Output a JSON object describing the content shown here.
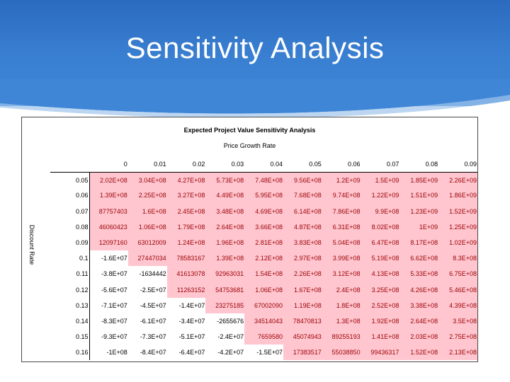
{
  "slide": {
    "title": "Sensitivity Analysis"
  },
  "sheet": {
    "title": "Expected Project Value Sensitivity Analysis",
    "column_axis_label": "Price Growth Rate",
    "row_axis_label": "Discount Rate",
    "columns": [
      "0",
      "0.01",
      "0.02",
      "0.03",
      "0.04",
      "0.05",
      "0.06",
      "0.07",
      "0.08",
      "0.09"
    ],
    "rows": [
      {
        "label": "0.05",
        "cells": [
          {
            "v": "2.02E+08",
            "pos": true
          },
          {
            "v": "3.04E+08",
            "pos": true
          },
          {
            "v": "4.27E+08",
            "pos": true
          },
          {
            "v": "5.73E+08",
            "pos": true
          },
          {
            "v": "7.48E+08",
            "pos": true
          },
          {
            "v": "9.56E+08",
            "pos": true
          },
          {
            "v": "1.2E+09",
            "pos": true
          },
          {
            "v": "1.5E+09",
            "pos": true
          },
          {
            "v": "1.85E+09",
            "pos": true
          },
          {
            "v": "2.26E+09",
            "pos": true
          }
        ]
      },
      {
        "label": "0.06",
        "cells": [
          {
            "v": "1.39E+08",
            "pos": true
          },
          {
            "v": "2.25E+08",
            "pos": true
          },
          {
            "v": "3.27E+08",
            "pos": true
          },
          {
            "v": "4.49E+08",
            "pos": true
          },
          {
            "v": "5.95E+08",
            "pos": true
          },
          {
            "v": "7.68E+08",
            "pos": true
          },
          {
            "v": "9.74E+08",
            "pos": true
          },
          {
            "v": "1.22E+09",
            "pos": true
          },
          {
            "v": "1.51E+09",
            "pos": true
          },
          {
            "v": "1.86E+09",
            "pos": true
          }
        ]
      },
      {
        "label": "0.07",
        "cells": [
          {
            "v": "87757403",
            "pos": true
          },
          {
            "v": "1.6E+08",
            "pos": true
          },
          {
            "v": "2.45E+08",
            "pos": true
          },
          {
            "v": "3.48E+08",
            "pos": true
          },
          {
            "v": "4.69E+08",
            "pos": true
          },
          {
            "v": "6.14E+08",
            "pos": true
          },
          {
            "v": "7.86E+08",
            "pos": true
          },
          {
            "v": "9.9E+08",
            "pos": true
          },
          {
            "v": "1.23E+09",
            "pos": true
          },
          {
            "v": "1.52E+09",
            "pos": true
          }
        ]
      },
      {
        "label": "0.08",
        "cells": [
          {
            "v": "46060423",
            "pos": true
          },
          {
            "v": "1.06E+08",
            "pos": true
          },
          {
            "v": "1.79E+08",
            "pos": true
          },
          {
            "v": "2.64E+08",
            "pos": true
          },
          {
            "v": "3.66E+08",
            "pos": true
          },
          {
            "v": "4.87E+08",
            "pos": true
          },
          {
            "v": "6.31E+08",
            "pos": true
          },
          {
            "v": "8.02E+08",
            "pos": true
          },
          {
            "v": "1E+09",
            "pos": true
          },
          {
            "v": "1.25E+09",
            "pos": true
          }
        ]
      },
      {
        "label": "0.09",
        "cells": [
          {
            "v": "12097160",
            "pos": true
          },
          {
            "v": "63012009",
            "pos": true
          },
          {
            "v": "1.24E+08",
            "pos": true
          },
          {
            "v": "1.96E+08",
            "pos": true
          },
          {
            "v": "2.81E+08",
            "pos": true
          },
          {
            "v": "3.83E+08",
            "pos": true
          },
          {
            "v": "5.04E+08",
            "pos": true
          },
          {
            "v": "6.47E+08",
            "pos": true
          },
          {
            "v": "8.17E+08",
            "pos": true
          },
          {
            "v": "1.02E+09",
            "pos": true
          }
        ]
      },
      {
        "label": "0.1",
        "cells": [
          {
            "v": "-1.6E+07",
            "pos": false
          },
          {
            "v": "27447034",
            "pos": true
          },
          {
            "v": "78583167",
            "pos": true
          },
          {
            "v": "1.39E+08",
            "pos": true
          },
          {
            "v": "2.12E+08",
            "pos": true
          },
          {
            "v": "2.97E+08",
            "pos": true
          },
          {
            "v": "3.99E+08",
            "pos": true
          },
          {
            "v": "5.19E+08",
            "pos": true
          },
          {
            "v": "6.62E+08",
            "pos": true
          },
          {
            "v": "8.3E+08",
            "pos": true
          }
        ]
      },
      {
        "label": "0.11",
        "cells": [
          {
            "v": "-3.8E+07",
            "pos": false
          },
          {
            "v": "-1634442",
            "pos": false
          },
          {
            "v": "41613078",
            "pos": true
          },
          {
            "v": "92963031",
            "pos": true
          },
          {
            "v": "1.54E+08",
            "pos": true
          },
          {
            "v": "2.26E+08",
            "pos": true
          },
          {
            "v": "3.12E+08",
            "pos": true
          },
          {
            "v": "4.13E+08",
            "pos": true
          },
          {
            "v": "5.33E+08",
            "pos": true
          },
          {
            "v": "6.75E+08",
            "pos": true
          }
        ]
      },
      {
        "label": "0.12",
        "cells": [
          {
            "v": "-5.6E+07",
            "pos": false
          },
          {
            "v": "-2.5E+07",
            "pos": false
          },
          {
            "v": "11263152",
            "pos": true
          },
          {
            "v": "54753681",
            "pos": true
          },
          {
            "v": "1.06E+08",
            "pos": true
          },
          {
            "v": "1.67E+08",
            "pos": true
          },
          {
            "v": "2.4E+08",
            "pos": true
          },
          {
            "v": "3.25E+08",
            "pos": true
          },
          {
            "v": "4.26E+08",
            "pos": true
          },
          {
            "v": "5.46E+08",
            "pos": true
          }
        ]
      },
      {
        "label": "0.13",
        "cells": [
          {
            "v": "-7.1E+07",
            "pos": false
          },
          {
            "v": "-4.5E+07",
            "pos": false
          },
          {
            "v": "-1.4E+07",
            "pos": false
          },
          {
            "v": "23275185",
            "pos": true
          },
          {
            "v": "67002090",
            "pos": true
          },
          {
            "v": "1.19E+08",
            "pos": true
          },
          {
            "v": "1.8E+08",
            "pos": true
          },
          {
            "v": "2.52E+08",
            "pos": true
          },
          {
            "v": "3.38E+08",
            "pos": true
          },
          {
            "v": "4.39E+08",
            "pos": true
          }
        ]
      },
      {
        "label": "0.14",
        "cells": [
          {
            "v": "-8.3E+07",
            "pos": false
          },
          {
            "v": "-6.1E+07",
            "pos": false
          },
          {
            "v": "-3.4E+07",
            "pos": false
          },
          {
            "v": "-2655676",
            "pos": false
          },
          {
            "v": "34514043",
            "pos": true
          },
          {
            "v": "78470813",
            "pos": true
          },
          {
            "v": "1.3E+08",
            "pos": true
          },
          {
            "v": "1.92E+08",
            "pos": true
          },
          {
            "v": "2.64E+08",
            "pos": true
          },
          {
            "v": "3.5E+08",
            "pos": true
          }
        ]
      },
      {
        "label": "0.15",
        "cells": [
          {
            "v": "-9.3E+07",
            "pos": false
          },
          {
            "v": "-7.3E+07",
            "pos": false
          },
          {
            "v": "-5.1E+07",
            "pos": false
          },
          {
            "v": "-2.4E+07",
            "pos": false
          },
          {
            "v": "7659580",
            "pos": true
          },
          {
            "v": "45074943",
            "pos": true
          },
          {
            "v": "89255193",
            "pos": true
          },
          {
            "v": "1.41E+08",
            "pos": true
          },
          {
            "v": "2.03E+08",
            "pos": true
          },
          {
            "v": "2.75E+08",
            "pos": true
          }
        ]
      },
      {
        "label": "0.16",
        "cells": [
          {
            "v": "-1E+08",
            "pos": false
          },
          {
            "v": "-8.4E+07",
            "pos": false
          },
          {
            "v": "-6.4E+07",
            "pos": false
          },
          {
            "v": "-4.2E+07",
            "pos": false
          },
          {
            "v": "-1.5E+07",
            "pos": false
          },
          {
            "v": "17383517",
            "pos": true
          },
          {
            "v": "55038850",
            "pos": true
          },
          {
            "v": "99436317",
            "pos": true
          },
          {
            "v": "1.52E+08",
            "pos": true
          },
          {
            "v": "2.13E+08",
            "pos": true
          }
        ]
      }
    ]
  },
  "colors": {
    "header_blue": "#2f73c6",
    "positive_fill": "#ffc6cf",
    "positive_text": "#9c0006"
  }
}
